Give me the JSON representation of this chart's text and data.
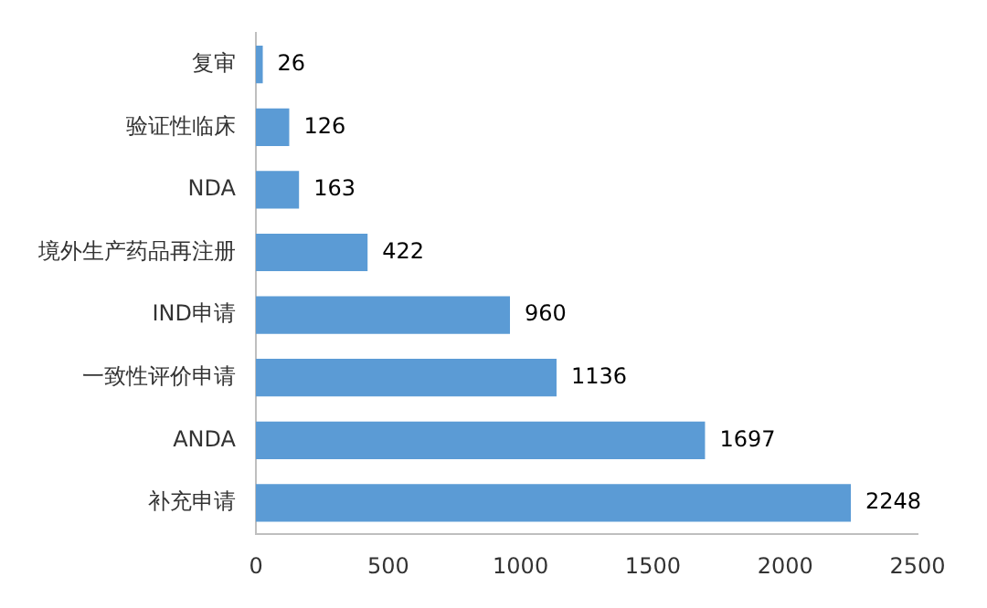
{
  "chart_data": {
    "type": "bar",
    "orientation": "horizontal",
    "categories": [
      "复审",
      "验证性临床",
      "NDA",
      "境外生产药品再注册",
      "IND申请",
      "一致性评价申请",
      "ANDA",
      "补充申请"
    ],
    "values": [
      26,
      126,
      163,
      422,
      960,
      1136,
      1697,
      2248
    ],
    "color": "#5b9bd5",
    "xlim": [
      0,
      2500
    ],
    "xticks": [
      0,
      500,
      1000,
      1500,
      2000,
      2500
    ],
    "grid": false,
    "legend": false,
    "data_labels": true
  }
}
